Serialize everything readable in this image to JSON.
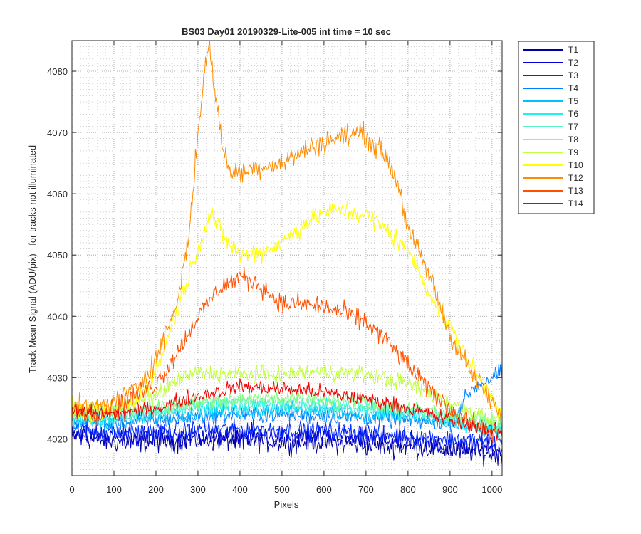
{
  "chart_data": {
    "type": "line",
    "title": "BS03 Day01 20190329-Lite-005 int time = 10 sec",
    "xlabel": "Pixels",
    "ylabel": "Track Mean Signal (ADU/pix) - for tracks not illuminated",
    "xlim": [
      0,
      1024
    ],
    "ylim": [
      4014,
      4085
    ],
    "xticks": [
      0,
      100,
      200,
      300,
      400,
      500,
      600,
      700,
      800,
      900,
      1000
    ],
    "yticks": [
      4020,
      4030,
      4040,
      4050,
      4060,
      4070,
      4080
    ],
    "grid": "major and minor, dotted",
    "legend_position": "outside-right",
    "series": [
      {
        "name": "T1",
        "color": "#0000A0",
        "x": [
          0,
          100,
          200,
          300,
          400,
          500,
          600,
          700,
          800,
          900,
          1024
        ],
        "y": [
          4020.5,
          4019.5,
          4019.5,
          4019.8,
          4019.8,
          4019.5,
          4019.5,
          4019,
          4018.7,
          4018.2,
          4017.5
        ]
      },
      {
        "name": "T2",
        "color": "#0000DC",
        "x": [
          0,
          100,
          200,
          300,
          400,
          500,
          600,
          700,
          800,
          900,
          1024
        ],
        "y": [
          4021,
          4020.5,
          4020.3,
          4020.5,
          4020.5,
          4020.3,
          4020.2,
          4020,
          4019.5,
          4019,
          4018.5
        ]
      },
      {
        "name": "T3",
        "color": "#0028FF",
        "x": [
          0,
          100,
          200,
          300,
          400,
          500,
          600,
          700,
          800,
          900,
          1024
        ],
        "y": [
          4021.5,
          4021,
          4021.2,
          4021.5,
          4021.5,
          4021.5,
          4021.3,
          4021,
          4020.5,
          4020,
          4019.5
        ]
      },
      {
        "name": "T4",
        "color": "#0080FF",
        "x": [
          0,
          100,
          200,
          300,
          400,
          500,
          600,
          700,
          800,
          900,
          950,
          1024
        ],
        "y": [
          4022.5,
          4022.5,
          4023,
          4023.8,
          4024,
          4024,
          4023.8,
          4023.5,
          4023,
          4022.5,
          4028,
          4031
        ]
      },
      {
        "name": "T5",
        "color": "#00C0FF",
        "x": [
          0,
          100,
          200,
          300,
          400,
          500,
          600,
          700,
          800,
          900,
          1024
        ],
        "y": [
          4023,
          4023,
          4023.5,
          4024.2,
          4024.5,
          4024.8,
          4024.5,
          4024,
          4023.5,
          4022.5,
          4021
        ]
      },
      {
        "name": "T6",
        "color": "#20F0F0",
        "x": [
          0,
          100,
          200,
          300,
          400,
          500,
          600,
          700,
          800,
          900,
          1024
        ],
        "y": [
          4023.5,
          4023.5,
          4024,
          4025,
          4025.5,
          4025.5,
          4025.2,
          4024.8,
          4024,
          4023,
          4021.5
        ]
      },
      {
        "name": "T7",
        "color": "#60F0C0",
        "x": [
          0,
          100,
          200,
          300,
          400,
          500,
          600,
          700,
          800,
          900,
          1024
        ],
        "y": [
          4024,
          4024,
          4024.5,
          4025.5,
          4026,
          4026,
          4025.8,
          4025.2,
          4024.5,
          4023.5,
          4022
        ]
      },
      {
        "name": "T8",
        "color": "#80FF80",
        "x": [
          0,
          100,
          200,
          300,
          400,
          500,
          600,
          700,
          800,
          900,
          1024
        ],
        "y": [
          4024.5,
          4024.5,
          4025,
          4026,
          4026.5,
          4026.7,
          4026.5,
          4026,
          4025,
          4024,
          4022.5
        ]
      },
      {
        "name": "T9",
        "color": "#C0FF40",
        "x": [
          0,
          100,
          200,
          250,
          300,
          400,
          500,
          600,
          700,
          800,
          850,
          900,
          1024
        ],
        "y": [
          4025,
          4025,
          4027,
          4029.5,
          4030.8,
          4030.5,
          4030.5,
          4031,
          4030.5,
          4029,
          4027.5,
          4026,
          4022.5
        ]
      },
      {
        "name": "T10",
        "color": "#FFFF00",
        "x": [
          0,
          50,
          100,
          150,
          200,
          250,
          300,
          330,
          360,
          400,
          450,
          500,
          550,
          600,
          650,
          700,
          750,
          800,
          850,
          900,
          950,
          1000,
          1024
        ],
        "y": [
          4025,
          4024,
          4024.5,
          4026,
          4031,
          4041,
          4051,
          4057,
          4053,
          4050,
          4050.5,
          4052,
          4055,
          4057,
          4057.3,
          4056.5,
          4054,
          4051,
          4044,
          4038,
          4032,
          4027,
          4024
        ]
      },
      {
        "name": "T12",
        "color": "#FF8C00",
        "x": [
          0,
          50,
          100,
          150,
          200,
          250,
          280,
          300,
          315,
          328,
          340,
          360,
          380,
          400,
          450,
          500,
          550,
          600,
          650,
          690,
          720,
          750,
          780,
          800,
          830,
          860,
          900,
          950,
          1000,
          1024
        ],
        "y": [
          4025,
          4025,
          4026,
          4028,
          4033,
          4042,
          4054,
          4070,
          4080,
          4084,
          4077,
          4067,
          4063.5,
          4063.5,
          4064.5,
          4065,
          4067,
          4068.5,
          4069.5,
          4070,
          4068,
          4066,
          4061,
          4054,
          4050,
          4045,
          4037,
          4031,
          4026,
          4023
        ]
      },
      {
        "name": "T13",
        "color": "#FF5000",
        "x": [
          0,
          50,
          100,
          150,
          200,
          250,
          300,
          350,
          400,
          450,
          500,
          550,
          600,
          650,
          700,
          750,
          800,
          850,
          900,
          950,
          1000,
          1024
        ],
        "y": [
          4025,
          4024,
          4025,
          4027,
          4029,
          4034,
          4040,
          4044.5,
          4046.5,
          4045,
          4042,
          4042,
          4041.5,
          4040.5,
          4039,
          4036,
          4032,
          4028,
          4025,
          4022.5,
          4021,
          4020.5
        ]
      },
      {
        "name": "T14",
        "color": "#F00000",
        "x": [
          0,
          100,
          200,
          300,
          400,
          500,
          600,
          700,
          800,
          900,
          1024
        ],
        "y": [
          4024.5,
          4024,
          4025,
          4027,
          4028.5,
          4028.2,
          4027.5,
          4026.5,
          4025,
          4023,
          4021
        ]
      }
    ]
  }
}
